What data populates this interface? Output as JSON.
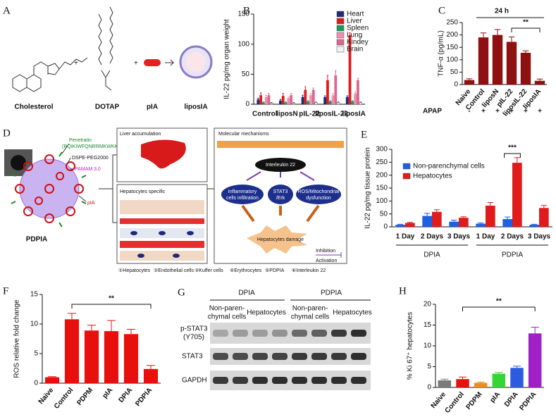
{
  "panel_a": {
    "label": "A",
    "items": [
      "Cholesterol",
      "DOTAP",
      "pIA",
      "liposIA"
    ]
  },
  "panel_d": {
    "label": "D",
    "particle": [
      "Penetratin",
      "(RQIKIWFQNRRMKWKK)",
      "DSPE-PEG2000",
      "PAMAM 3.0",
      "pIA",
      "PDPIA"
    ],
    "boxes": [
      "Liver accumulation",
      "Hepatocytes specific",
      "Molecular mechanisms"
    ],
    "mechanism": [
      "Interleukin 22",
      "Inflammatory",
      "cells infiltration",
      "STAT3",
      "/Erk",
      "ROS/Mitochondrial",
      "dysfunction",
      "Hepatocytes damage",
      "Inhibition",
      "Activation"
    ],
    "legend": [
      "①Hepatocytes",
      "②Endothelial cells",
      "③Kuffer cells",
      "④Erythrocytes",
      "⑤PDPIA",
      "⑥Interleukin 22"
    ]
  },
  "panel_g": {
    "label": "G",
    "groups": [
      "DPIA",
      "PDPIA"
    ],
    "columns": [
      [
        "Non-paren-",
        "chymal cells"
      ],
      [
        "Hepatocytes"
      ],
      [
        "Non-paren-",
        "chymal cells"
      ],
      [
        "Hepatocytes"
      ]
    ],
    "rows": [
      [
        "p-STAT3",
        "(Y705)"
      ],
      [
        "STAT3"
      ],
      [
        "GAPDH"
      ]
    ]
  },
  "chart_data": [
    {
      "type": "bar",
      "panel_label": "B",
      "y_label": "IL-22 pg/mg organ weight",
      "categories": [
        "Control",
        "liposN",
        "pIL-22",
        "liposIL-22",
        "liposIA"
      ],
      "series": [
        {
          "name": "Heart",
          "color": "#1f2a78",
          "values": [
            8,
            6,
            12,
            12,
            12
          ],
          "errors": [
            2,
            2,
            3,
            2,
            2
          ]
        },
        {
          "name": "Liver",
          "color": "#e01b1b",
          "values": [
            15,
            14,
            24,
            40,
            115
          ],
          "errors": [
            4,
            4,
            5,
            8,
            4
          ]
        },
        {
          "name": "Spleen",
          "color": "#1a9a5a",
          "values": [
            3,
            3,
            5,
            5,
            5
          ],
          "errors": [
            1,
            1,
            1,
            1,
            1
          ]
        },
        {
          "name": "Lung",
          "color": "#f28cb0",
          "values": [
            12,
            10,
            15,
            15,
            18
          ],
          "errors": [
            3,
            2,
            3,
            3,
            3
          ]
        },
        {
          "name": "Kindey",
          "color": "#d9688f",
          "values": [
            15,
            15,
            24,
            48,
            40
          ],
          "errors": [
            3,
            3,
            3,
            8,
            3
          ]
        },
        {
          "name": "Brain",
          "color": "#f2f2f2",
          "values": [
            2,
            2,
            3,
            3,
            3
          ],
          "errors": [
            1,
            1,
            1,
            1,
            1
          ]
        }
      ],
      "ylim": [
        0,
        150
      ],
      "yticks": [
        0,
        50,
        100,
        150
      ]
    },
    {
      "type": "bar",
      "panel_label": "C",
      "title": "24 h",
      "y_label": "TNF-α (pg/mL)",
      "categories": [
        "Naive",
        "Control",
        "liposN",
        "pIL-22",
        "liposIL-22",
        "liposIA"
      ],
      "values": [
        18,
        190,
        200,
        172,
        128,
        15
      ],
      "errors": [
        5,
        18,
        22,
        20,
        8,
        7
      ],
      "color": "#8e1010",
      "ylim": [
        0,
        250
      ],
      "yticks": [
        0,
        50,
        100,
        150,
        200,
        250
      ],
      "x_row_label": "APAP",
      "x_row": [
        "-",
        "+",
        "+",
        "+",
        "+",
        "+"
      ],
      "annotation": "**"
    },
    {
      "type": "bar",
      "panel_label": "E",
      "y_label": "IL-22 pg/mg tissue protein",
      "categories": [
        "1 Day",
        "2 Days",
        "3 Days",
        "1 Day",
        "2 Days",
        "3 Days"
      ],
      "group_labels": [
        "DPIA",
        "PDPIA"
      ],
      "series": [
        {
          "name": "Non-parenchymal cells",
          "color": "#1f5fe0",
          "values": [
            8,
            42,
            20,
            12,
            30,
            8
          ],
          "errors": [
            2,
            10,
            6,
            3,
            8,
            2
          ]
        },
        {
          "name": "Hepatocytes",
          "color": "#e01b1b",
          "values": [
            15,
            58,
            35,
            82,
            248,
            73
          ],
          "errors": [
            2,
            8,
            4,
            12,
            20,
            10
          ]
        }
      ],
      "ylim": [
        0,
        300
      ],
      "yticks": [
        0,
        50,
        100,
        150,
        200,
        250,
        300
      ],
      "annotation": "***"
    },
    {
      "type": "bar",
      "panel_label": "F",
      "y_label": "ROS relative fold change",
      "categories": [
        "Naive",
        "Control",
        "PDPM",
        "pIA",
        "DPIA",
        "PDPIA"
      ],
      "values": [
        1,
        10.8,
        8.9,
        8.8,
        8.3,
        2.4
      ],
      "errors": [
        0.1,
        1,
        0.9,
        1.8,
        0.8,
        0.6
      ],
      "color": "#e8100c",
      "ylim": [
        0,
        15
      ],
      "yticks": [
        0,
        5,
        10,
        15
      ],
      "annotation": "**"
    },
    {
      "type": "bar",
      "panel_label": "H",
      "y_label": "% Ki 67⁺ hepatocytes",
      "categories": [
        "Naive",
        "Control",
        "PDPM",
        "pIA",
        "DPIA",
        "PDPIA"
      ],
      "values": [
        1.7,
        2,
        1.1,
        3.3,
        4.7,
        13
      ],
      "errors": [
        0.3,
        0.5,
        0.2,
        0.3,
        0.4,
        1.5
      ],
      "colors": [
        "#7a7a7a",
        "#e8100c",
        "#f08a18",
        "#33d633",
        "#2a5be0",
        "#a020c8"
      ],
      "ylim": [
        0,
        20
      ],
      "yticks": [
        0,
        5,
        10,
        15,
        20
      ],
      "annotation": "**"
    }
  ]
}
